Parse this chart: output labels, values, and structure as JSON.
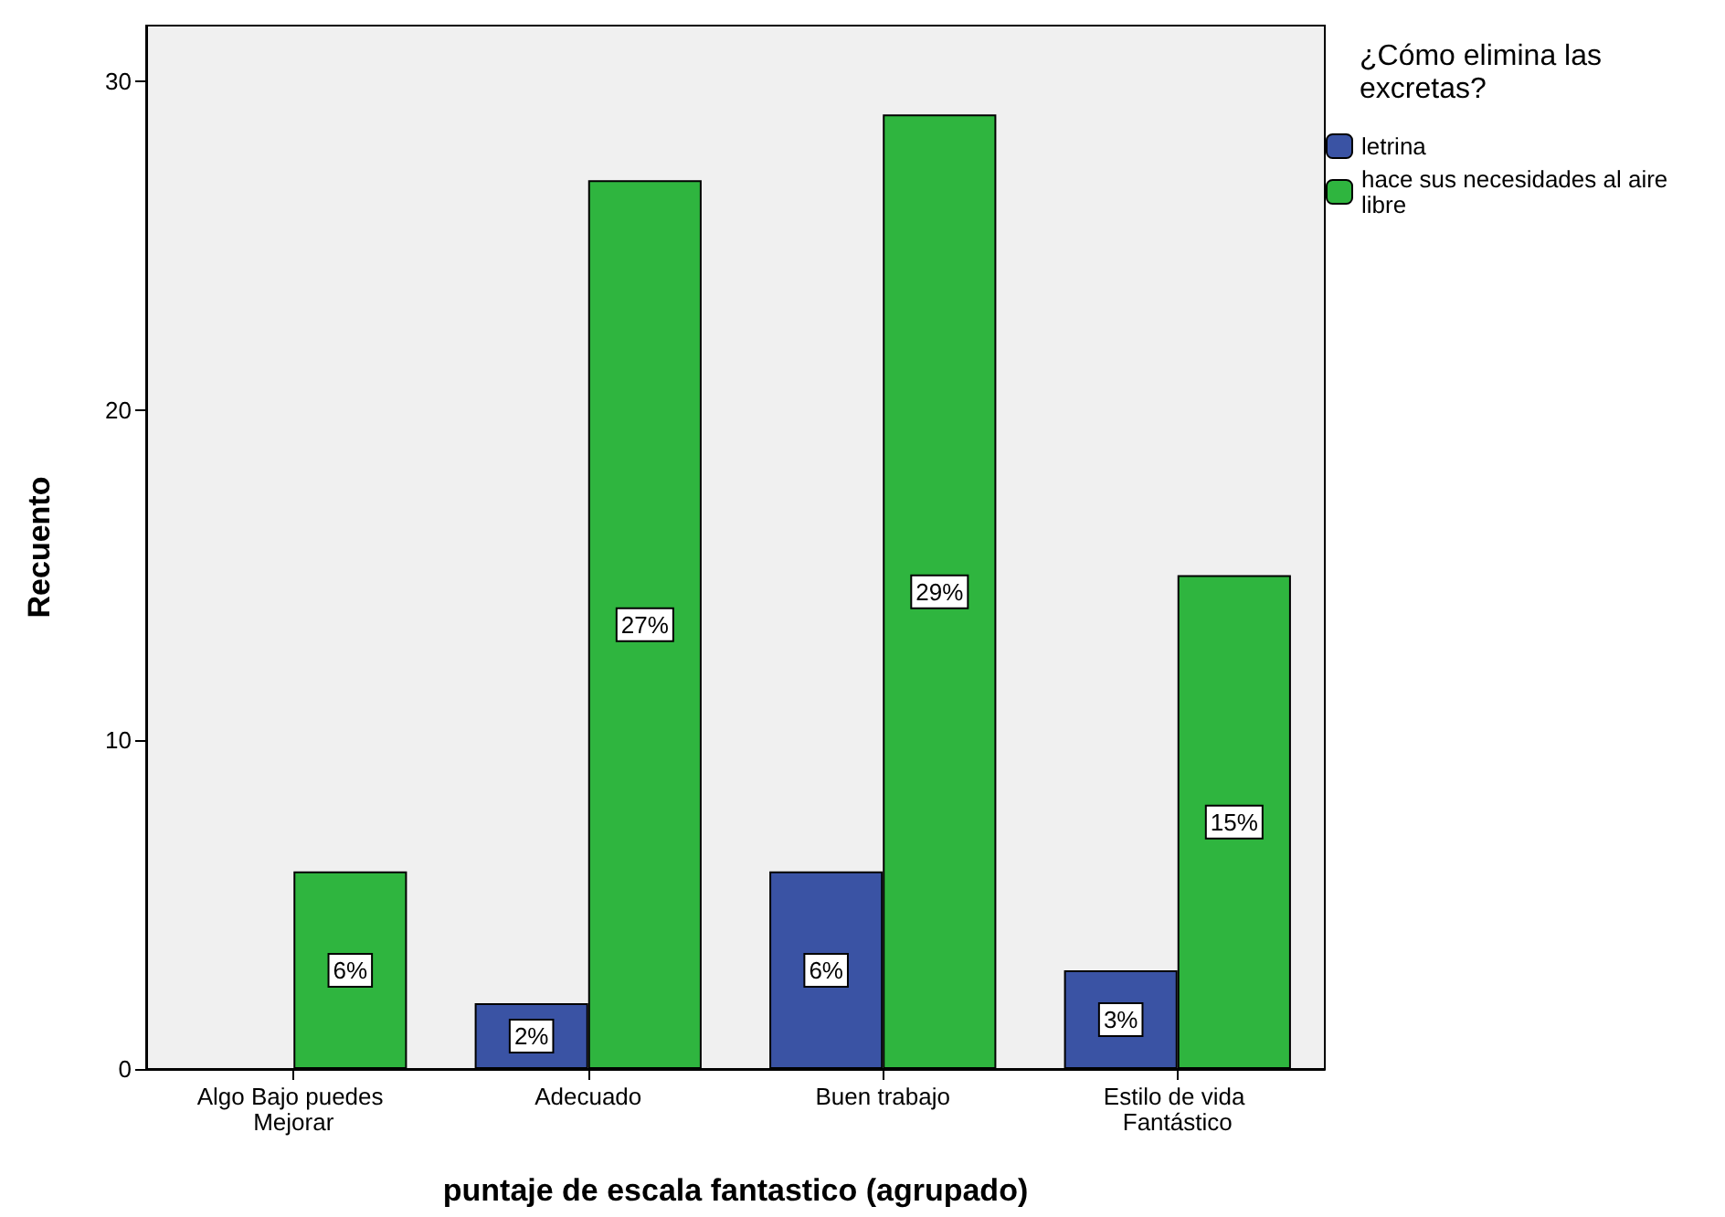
{
  "chart_data": {
    "type": "bar",
    "xlabel": "puntaje de escala fantastico (agrupado)",
    "ylabel": "Recuento",
    "legend_title": "¿Cómo elimina las excretas?",
    "legend": "top right",
    "categories": [
      "Algo Bajo puedes Mejorar",
      "Adecuado",
      "Buen trabajo",
      "Estilo de vida Fantástico"
    ],
    "series": [
      {
        "name": "letrina",
        "color": "#3a53a4",
        "values": [
          null,
          2,
          6,
          3
        ],
        "value_labels": [
          null,
          "2%",
          "6%",
          "3%"
        ]
      },
      {
        "name": "hace sus necesidades al aire libre",
        "color": "#2fb53f",
        "values": [
          6,
          27,
          29,
          15
        ],
        "value_labels": [
          "6%",
          "27%",
          "29%",
          "15%"
        ]
      }
    ],
    "ylim": [
      0,
      31.7
    ],
    "yticks": [
      0,
      10,
      20,
      30
    ],
    "grid": false
  }
}
